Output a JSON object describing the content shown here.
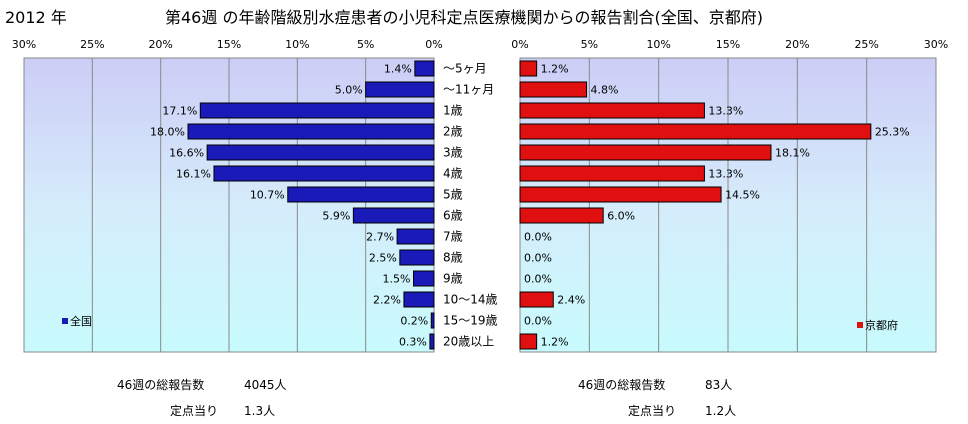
{
  "header": {
    "year": "2012 年",
    "title": "第46週 の年齢階級別水痘患者の小児科定点医療機関からの報告割合(全国、京都府)"
  },
  "chart_data": {
    "type": "bar",
    "categories": [
      "～5ヶ月",
      "～11ヶ月",
      "1歳",
      "2歳",
      "3歳",
      "4歳",
      "5歳",
      "6歳",
      "7歳",
      "8歳",
      "9歳",
      "10～14歳",
      "15～19歳",
      "20歳以上"
    ],
    "series": [
      {
        "name": "全国",
        "color": "#1a1ab8",
        "values": [
          1.4,
          5.0,
          17.1,
          18.0,
          16.6,
          16.1,
          10.7,
          5.9,
          2.7,
          2.5,
          1.5,
          2.2,
          0.2,
          0.3
        ],
        "labels": [
          "1.4%",
          "5.0%",
          "17.1%",
          "18.0%",
          "16.6%",
          "16.1%",
          "10.7%",
          "5.9%",
          "2.7%",
          "2.5%",
          "1.5%",
          "2.2%",
          "0.2%",
          "0.3%"
        ]
      },
      {
        "name": "京都府",
        "color": "#e01010",
        "values": [
          1.2,
          4.8,
          13.3,
          25.3,
          18.1,
          13.3,
          14.5,
          6.0,
          0.0,
          0.0,
          0.0,
          2.4,
          0.0,
          1.2
        ],
        "labels": [
          "1.2%",
          "4.8%",
          "13.3%",
          "25.3%",
          "18.1%",
          "13.3%",
          "14.5%",
          "6.0%",
          "0.0%",
          "0.0%",
          "0.0%",
          "2.4%",
          "0.0%",
          "1.2%"
        ]
      }
    ],
    "left_ticks": [
      "30%",
      "25%",
      "20%",
      "15%",
      "10%",
      "5%",
      "0%"
    ],
    "right_ticks": [
      "0%",
      "5%",
      "10%",
      "15%",
      "20%",
      "25%",
      "30%"
    ],
    "xlim": [
      0,
      30
    ],
    "grid": true,
    "legend": [
      {
        "label": "全国",
        "placement": "bottom-left"
      },
      {
        "label": "京都府",
        "placement": "bottom-right"
      }
    ]
  },
  "footer": {
    "national": {
      "total_label": "46週の総報告数",
      "total_value": "4045人",
      "per_label": "定点当り",
      "per_value": "1.3人"
    },
    "kyoto": {
      "total_label": "46週の総報告数",
      "total_value": "83人",
      "per_label": "定点当り",
      "per_value": "1.2人"
    }
  }
}
